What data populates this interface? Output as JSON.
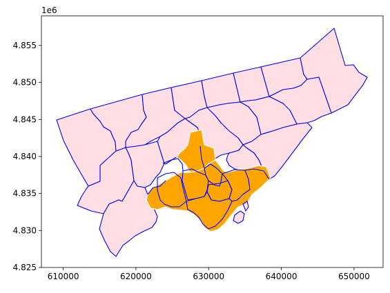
{
  "map": {
    "offset_label": "1e6",
    "colors": {
      "district_fill": "#ffdfe4",
      "district_stroke": "#0000ff",
      "highlight_fill": "#ffa500",
      "highlight_stroke": "#ffffff",
      "axes": "#000000",
      "background": "#ffffff"
    }
  },
  "chart_data": {
    "type": "map",
    "title": "",
    "xlabel": "",
    "ylabel": "",
    "xlim": [
      607000,
      654000
    ],
    "ylim": [
      4825000,
      4859000
    ],
    "x_ticks": [
      610000,
      620000,
      630000,
      640000,
      650000
    ],
    "y_ticks": [
      4825000,
      4830000,
      4835000,
      4840000,
      4845000,
      4850000,
      4855000
    ],
    "x_tick_labels": [
      "610000",
      "620000",
      "630000",
      "640000",
      "650000"
    ],
    "y_tick_labels": [
      "4.825",
      "4.830",
      "4.835",
      "4.840",
      "4.845",
      "4.850",
      "4.855"
    ],
    "y_offset_label": "1e6",
    "grid": false,
    "legend": "none",
    "layers": [
      {
        "name": "district boundaries",
        "fill": "#ffdfe4",
        "stroke": "#0000ff"
      },
      {
        "name": "highlighted districts",
        "fill": "#ffa500",
        "stroke": "#ffffff"
      }
    ]
  }
}
